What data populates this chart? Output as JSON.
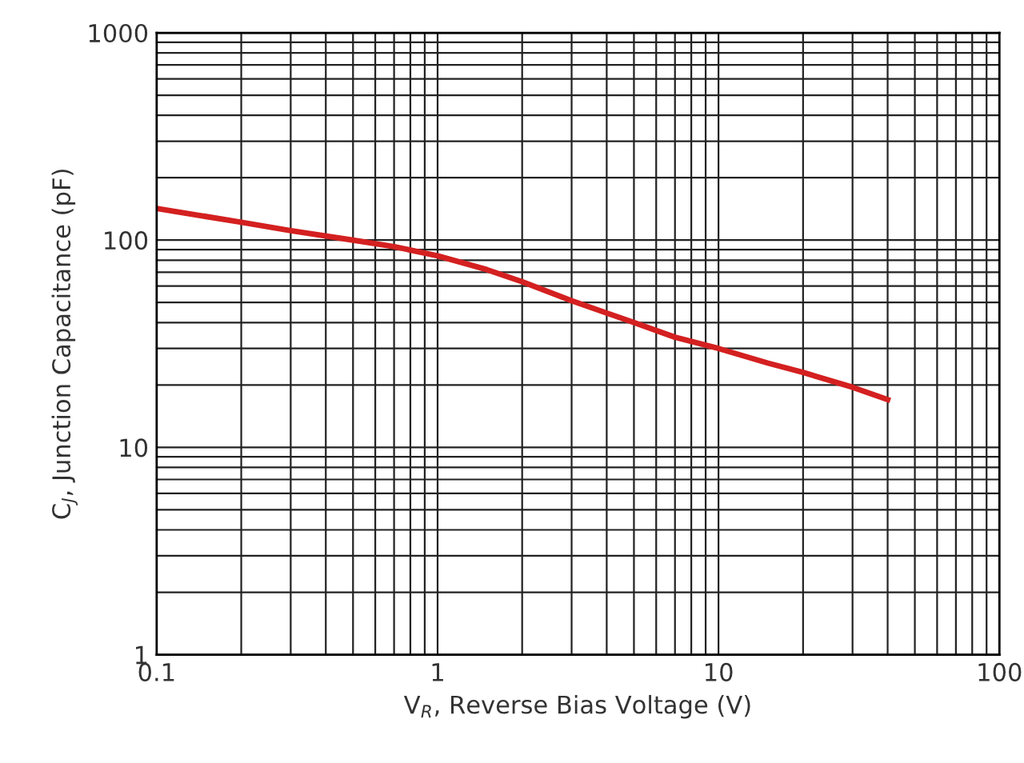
{
  "chart_data": {
    "type": "line",
    "xlabel": "V$_{R}$, Reverse Bias Voltage (V)",
    "ylabel": "C$_{J}$, Junction Capacitance (pF)",
    "log": "xy",
    "grid": true,
    "marker": "none",
    "line_style": "solid",
    "xlim": [
      0.1,
      100
    ],
    "ylim": [
      1,
      1000
    ],
    "xticks": [
      0.1,
      1,
      10,
      100
    ],
    "yticks": [
      1,
      10,
      100,
      1000
    ],
    "series": [
      {
        "color": "#d42020",
        "x": [
          0.1,
          0.2,
          0.3,
          0.5,
          0.7,
          1,
          1.5,
          2,
          3,
          5,
          7,
          10,
          15,
          20,
          30,
          40
        ],
        "values": [
          142,
          122,
          111,
          100,
          93,
          84,
          72,
          63,
          51,
          40,
          34,
          30,
          25.5,
          23,
          19.5,
          17
        ]
      }
    ]
  }
}
